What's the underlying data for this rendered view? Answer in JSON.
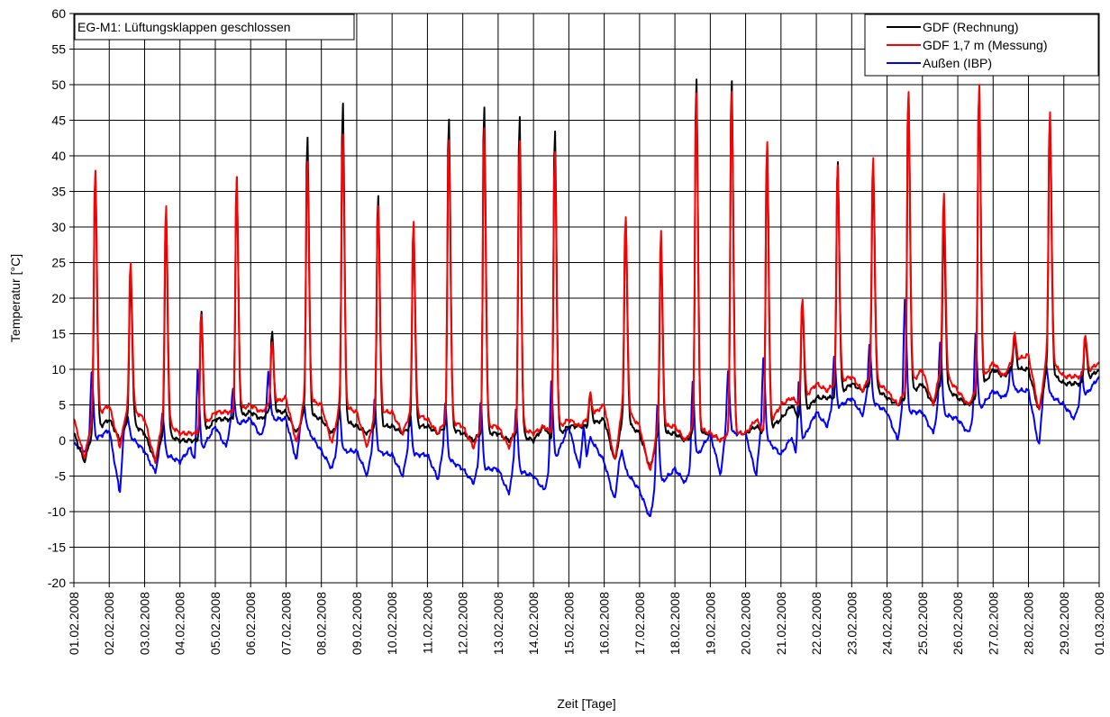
{
  "chart_data": {
    "type": "line",
    "annotation": "EG-M1: Lüftungsklappen geschlossen",
    "xlabel": "Zeit [Tage]",
    "ylabel": "Temperatur [°C]",
    "ylim": [
      -20,
      60
    ],
    "yticks": [
      -20,
      -15,
      -10,
      -5,
      0,
      5,
      10,
      15,
      20,
      25,
      30,
      35,
      40,
      45,
      50,
      55,
      60
    ],
    "xlim": [
      "01.02.2008",
      "01.03.2008"
    ],
    "xticks": [
      "01.02.2008",
      "02.02.2008",
      "03.02.2008",
      "04.02.2008",
      "05.02.2008",
      "06.02.2008",
      "07.02.2008",
      "08.02.2008",
      "09.02.2008",
      "10.02.2008",
      "11.02.2008",
      "12.02.2008",
      "13.02.2008",
      "14.02.2008",
      "15.02.2008",
      "16.02.2008",
      "17.02.2008",
      "18.02.2008",
      "19.02.2008",
      "20.02.2008",
      "21.02.2008",
      "22.02.2008",
      "23.02.2008",
      "24.02.2008",
      "25.02.2008",
      "26.02.2008",
      "27.02.2008",
      "28.02.2008",
      "29.02.2008",
      "01.03.2008"
    ],
    "grid": true,
    "legend_position": "top-right",
    "series": [
      {
        "name": "GDF (Rechnung)",
        "color": "#000000",
        "peak_time": 0.6,
        "base": [
          1,
          3,
          1,
          0,
          3,
          4,
          4,
          3,
          2,
          2,
          2,
          1,
          1,
          0,
          2,
          3,
          1,
          1,
          1,
          1,
          3,
          6,
          8,
          6,
          8,
          6,
          10,
          10,
          8,
          10
        ],
        "peak": [
          38.5,
          24,
          32,
          18.5,
          37.5,
          15.5,
          43.5,
          48.5,
          35.5,
          31,
          46.5,
          48,
          46.5,
          44.5,
          6.5,
          31.5,
          28,
          52,
          52,
          42.5,
          20,
          40,
          39,
          49.5,
          31,
          50.5,
          14.5,
          46,
          14.5
        ],
        "trough": [
          -3,
          0,
          -3,
          0,
          3,
          3,
          1,
          1,
          1,
          1,
          1,
          0,
          0,
          2,
          2,
          -3,
          -4,
          0,
          0,
          2,
          5,
          6,
          7,
          5,
          5,
          5,
          9,
          4,
          8
        ]
      },
      {
        "name": "GDF 1,7 m (Messung)",
        "color": "#ff0000",
        "peak_time": 0.6,
        "base": [
          3,
          5,
          3,
          1,
          4,
          5,
          6,
          5,
          4,
          4,
          3,
          2,
          2,
          1,
          3,
          5,
          2,
          2,
          1,
          1,
          5,
          8,
          9,
          7,
          10,
          7,
          11,
          12,
          9,
          11
        ],
        "peak": [
          39,
          25.5,
          33.5,
          18,
          37.5,
          14,
          40,
          44,
          34,
          31.5,
          43.5,
          45,
          43,
          41.5,
          6.5,
          32,
          30,
          50,
          50.5,
          43,
          20.5,
          39.5,
          40.5,
          50,
          35,
          51,
          15,
          47,
          15
        ],
        "trough": [
          -2.5,
          -1,
          -3,
          1,
          4,
          4,
          -0.5,
          -0.5,
          -1,
          1,
          1,
          -1,
          -1,
          2,
          2,
          -3,
          -4.5,
          0,
          0,
          3,
          6,
          7,
          7,
          5,
          5,
          5,
          9,
          4,
          9
        ]
      },
      {
        "name": "Außen (IBP)",
        "color": "#0000ff",
        "peak_time": 0.5,
        "base": [
          -0.5,
          1.5,
          -1.5,
          -3,
          2,
          3,
          3,
          -1.5,
          -1.5,
          -2,
          -2,
          -4,
          -4,
          -5,
          2,
          -3,
          -7,
          -4,
          1,
          1,
          -2,
          4,
          6,
          4,
          4,
          3,
          7,
          7,
          5,
          9
        ],
        "peak": [
          9.5,
          3.5,
          4,
          10,
          7.5,
          9.5,
          5,
          5,
          5.5,
          4,
          5,
          5.5,
          4.5,
          8.5,
          -2,
          -1.5,
          5,
          8,
          9.5,
          11.5,
          8,
          12,
          13.5,
          20,
          14,
          15,
          10.5,
          10.5,
          9.5
        ],
        "trough": [
          -1.5,
          -7.5,
          -4.5,
          -1,
          -1,
          0.5,
          -3,
          -4,
          -5,
          -5,
          -5.5,
          -6,
          -7.5,
          -7,
          -4,
          -8.5,
          -11,
          -6,
          -5,
          -5,
          0.5,
          2,
          3.5,
          0,
          1,
          1,
          6,
          -1,
          3
        ]
      }
    ]
  }
}
